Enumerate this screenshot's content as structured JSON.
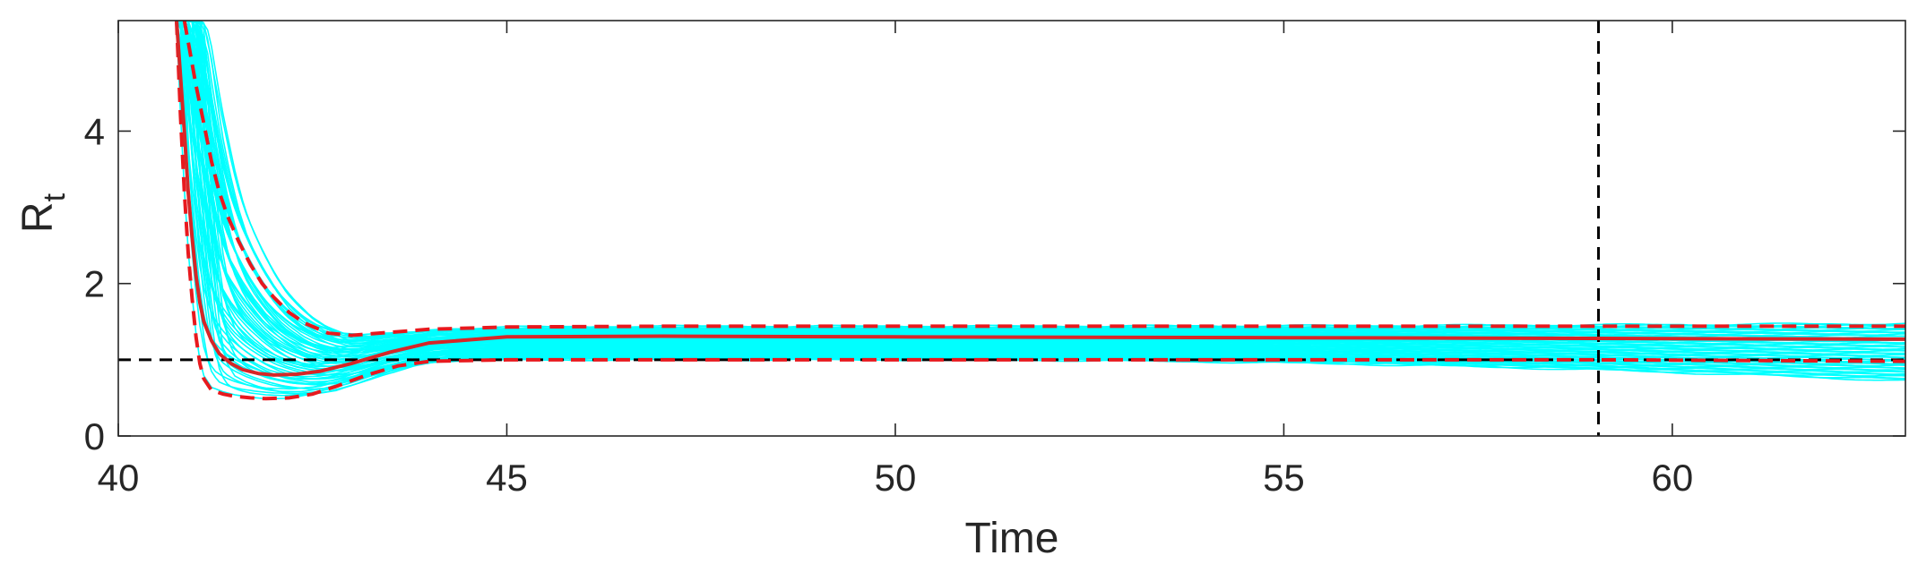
{
  "chart_data": {
    "type": "line",
    "title": "",
    "xlabel": "Time",
    "ylabel": {
      "base": "R",
      "subscript": "t"
    },
    "xlim": [
      40,
      63
    ],
    "ylim": [
      0,
      5.45
    ],
    "xticks": [
      40,
      45,
      50,
      55,
      60
    ],
    "yticks": [
      0,
      2,
      4
    ],
    "grid": false,
    "legend": "none",
    "colors": {
      "ensemble": "#00ffff",
      "median": "#d62728",
      "bounds": "#e8191e",
      "reference": "#000000",
      "axis": "#262626"
    },
    "reference_lines": [
      {
        "orientation": "horizontal",
        "y": 1,
        "style": "dashed"
      },
      {
        "orientation": "vertical",
        "x": 59.05,
        "style": "dashed"
      }
    ],
    "series": [
      {
        "role": "median",
        "style": "solid",
        "x": [
          40.75,
          40.85,
          40.9,
          40.95,
          41.0,
          41.05,
          41.1,
          41.2,
          41.3,
          41.45,
          41.6,
          41.8,
          42.0,
          42.3,
          42.6,
          43.0,
          43.5,
          44.0,
          45.0,
          47.0,
          50.0,
          55.0,
          59.0,
          63.0
        ],
        "y": [
          5.45,
          4.0,
          3.2,
          2.6,
          2.1,
          1.75,
          1.5,
          1.25,
          1.08,
          0.95,
          0.87,
          0.82,
          0.8,
          0.81,
          0.85,
          0.95,
          1.1,
          1.22,
          1.3,
          1.31,
          1.3,
          1.29,
          1.28,
          1.27
        ]
      },
      {
        "role": "upper-bound",
        "style": "dashed",
        "x": [
          40.85,
          41.0,
          41.1,
          41.2,
          41.3,
          41.4,
          41.55,
          41.7,
          41.85,
          42.0,
          42.2,
          42.4,
          42.7,
          43.0,
          43.5,
          44.0,
          45.0,
          47.0,
          50.0,
          55.0,
          59.0,
          63.0
        ],
        "y": [
          5.45,
          4.6,
          4.1,
          3.6,
          3.2,
          2.9,
          2.55,
          2.25,
          2.0,
          1.82,
          1.62,
          1.48,
          1.35,
          1.32,
          1.36,
          1.4,
          1.43,
          1.44,
          1.44,
          1.44,
          1.44,
          1.44
        ]
      },
      {
        "role": "lower-bound",
        "style": "dashed",
        "x": [
          40.75,
          40.8,
          40.85,
          40.9,
          40.95,
          41.0,
          41.05,
          41.1,
          41.2,
          41.35,
          41.5,
          41.7,
          41.9,
          42.2,
          42.5,
          42.8,
          43.2,
          43.6,
          44.0,
          44.5,
          45.0,
          47.0,
          50.0,
          55.0,
          59.0,
          63.0
        ],
        "y": [
          5.45,
          4.2,
          3.2,
          2.4,
          1.8,
          1.3,
          0.95,
          0.75,
          0.6,
          0.55,
          0.52,
          0.5,
          0.49,
          0.5,
          0.55,
          0.65,
          0.8,
          0.92,
          0.98,
          0.99,
          1.0,
          1.0,
          1.0,
          1.0,
          1.0,
          0.98
        ]
      }
    ],
    "ensemble": {
      "role": "sample-trajectories",
      "count": 60,
      "x_start": 40.75,
      "x_end": 63.0,
      "initial_y": 5.45,
      "early_spread": [
        0.45,
        2.3
      ],
      "final_spread": [
        0.72,
        1.48
      ]
    }
  }
}
